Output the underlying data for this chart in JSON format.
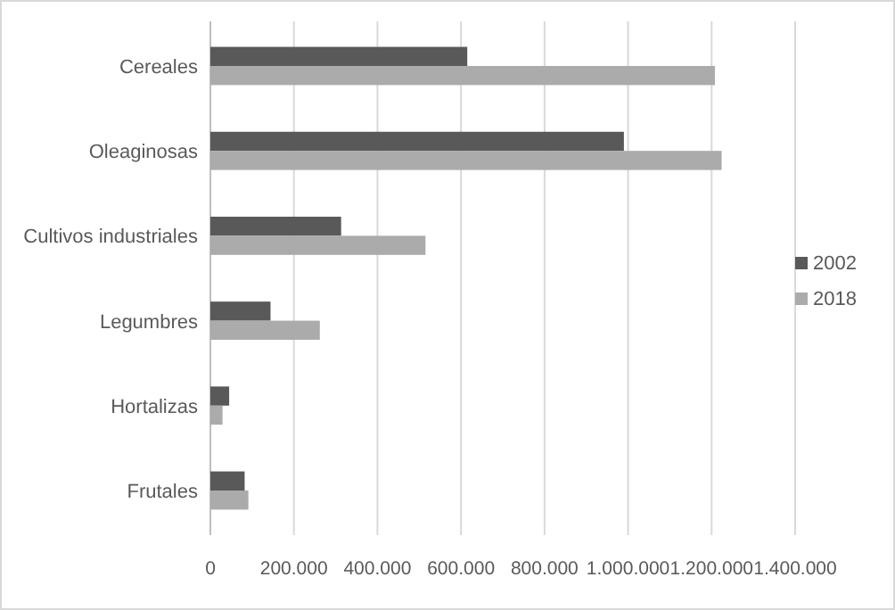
{
  "chart_data": {
    "type": "bar",
    "orientation": "horizontal",
    "categories": [
      "Cereales",
      "Oleaginosas",
      "Cultivos industriales",
      "Legumbres",
      "Hortalizas",
      "Frutales"
    ],
    "series": [
      {
        "name": "2002",
        "color": "#595959",
        "values": [
          615000,
          990000,
          313000,
          144000,
          45000,
          82000
        ]
      },
      {
        "name": "2018",
        "color": "#ababab",
        "values": [
          1208000,
          1224000,
          515000,
          262000,
          29000,
          91000
        ]
      }
    ],
    "xlim": [
      0,
      1400000
    ],
    "xticks": [
      0,
      {
        "value": 200000,
        "label": "200.000"
      },
      {
        "value": 400000,
        "label": "400.000"
      },
      {
        "value": 600000,
        "label": "600.000"
      },
      {
        "value": 800000,
        "label": "800.000"
      },
      {
        "value": 1000000,
        "label": "1.000.000"
      },
      {
        "value": 1200000,
        "label": "1.200.000"
      },
      {
        "value": 1400000,
        "label": "1.400.000"
      }
    ],
    "grid": "x",
    "legend": "right"
  }
}
